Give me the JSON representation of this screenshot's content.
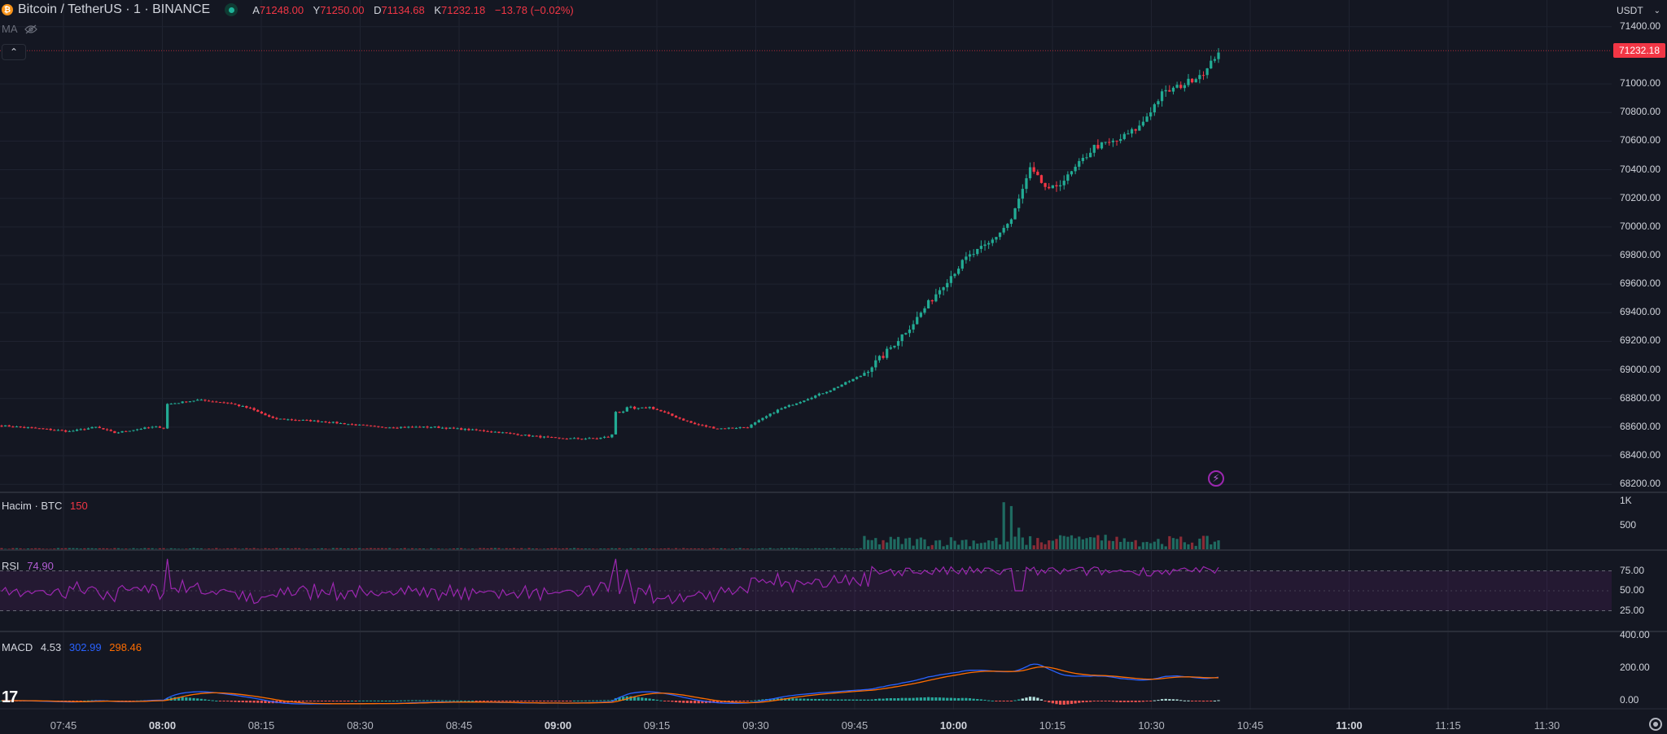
{
  "header": {
    "symbol": "Bitcoin / TetherUS · 1 · BINANCE",
    "coin_glyph": "₿",
    "ohlc": {
      "open_label": "A",
      "open": "71248.00",
      "high_label": "Y",
      "high": "71250.00",
      "low_label": "D",
      "low": "71134.68",
      "close_label": "K",
      "close": "71232.18",
      "change": "−13.78 (−0.02%)"
    }
  },
  "ma_label": "MA",
  "currency_button": "USDT",
  "current_price_tag": "71232.18",
  "colors": {
    "background": "#141722",
    "up": "#22ab94",
    "down": "#f23645",
    "volume_up": "#1f6b61",
    "volume_down": "#8a2b36",
    "rsi": "#9c27b0",
    "macd": "#2962ff",
    "signal": "#ff6d00",
    "grid": "#1f2330"
  },
  "price_axis": [
    "71400.00",
    "71000.00",
    "70800.00",
    "70600.00",
    "70400.00",
    "70200.00",
    "70000.00",
    "69800.00",
    "69600.00",
    "69400.00",
    "69200.00",
    "69000.00",
    "68800.00",
    "68600.00",
    "68400.00",
    "68200.00"
  ],
  "volume_pane": {
    "legend_name": "Hacim · BTC",
    "legend_value": "150",
    "axis": [
      "1K",
      "500"
    ]
  },
  "rsi_pane": {
    "legend_name": "RSI",
    "legend_value": "74.90",
    "axis": [
      "75.00",
      "50.00",
      "25.00"
    ]
  },
  "macd_pane": {
    "legend_name": "MACD",
    "v1": "4.53",
    "v2": "302.99",
    "v3": "298.46",
    "axis": [
      "400.00",
      "200.00",
      "0.00"
    ]
  },
  "time_axis": [
    {
      "t": "07:45",
      "bold": false
    },
    {
      "t": "08:00",
      "bold": true
    },
    {
      "t": "08:15",
      "bold": false
    },
    {
      "t": "08:30",
      "bold": false
    },
    {
      "t": "08:45",
      "bold": false
    },
    {
      "t": "09:00",
      "bold": true
    },
    {
      "t": "09:15",
      "bold": false
    },
    {
      "t": "09:30",
      "bold": false
    },
    {
      "t": "09:45",
      "bold": false
    },
    {
      "t": "10:00",
      "bold": true
    },
    {
      "t": "10:15",
      "bold": false
    },
    {
      "t": "10:30",
      "bold": false
    },
    {
      "t": "10:45",
      "bold": false
    },
    {
      "t": "11:00",
      "bold": true
    },
    {
      "t": "11:15",
      "bold": false
    },
    {
      "t": "11:30",
      "bold": false
    }
  ],
  "logo_text": "17",
  "chart_data": {
    "type": "candlestick",
    "interval": "1m",
    "start_time": "07:33",
    "close_path_anchors": [
      [
        0,
        68610
      ],
      [
        10,
        68590
      ],
      [
        18,
        68570
      ],
      [
        25,
        68600
      ],
      [
        30,
        68560
      ],
      [
        37,
        68590
      ],
      [
        40,
        68600
      ],
      [
        43,
        68600
      ],
      [
        44,
        68760
      ],
      [
        52,
        68790
      ],
      [
        60,
        68770
      ],
      [
        66,
        68730
      ],
      [
        72,
        68660
      ],
      [
        85,
        68640
      ],
      [
        100,
        68600
      ],
      [
        115,
        68600
      ],
      [
        125,
        68580
      ],
      [
        130,
        68570
      ],
      [
        140,
        68540
      ],
      [
        148,
        68520
      ],
      [
        158,
        68520
      ],
      [
        162,
        68540
      ],
      [
        163,
        68710
      ],
      [
        172,
        68740
      ],
      [
        178,
        68680
      ],
      [
        184,
        68620
      ],
      [
        190,
        68590
      ],
      [
        198,
        68600
      ],
      [
        206,
        68720
      ],
      [
        212,
        68780
      ],
      [
        220,
        68860
      ],
      [
        228,
        68960
      ],
      [
        234,
        69100
      ],
      [
        242,
        69330
      ],
      [
        250,
        69600
      ],
      [
        256,
        69780
      ],
      [
        262,
        69880
      ],
      [
        268,
        70050
      ],
      [
        273,
        70400
      ],
      [
        278,
        70250
      ],
      [
        283,
        70350
      ],
      [
        290,
        70560
      ],
      [
        296,
        70600
      ],
      [
        302,
        70700
      ],
      [
        308,
        70930
      ],
      [
        314,
        71000
      ],
      [
        320,
        71100
      ],
      [
        323,
        71232
      ]
    ],
    "volume_peak_btc": 1000,
    "rsi_levels": [
      75,
      50,
      25
    ],
    "rsi_last": 74.9,
    "macd": {
      "histogram": 4.53,
      "macd": 302.99,
      "signal": 298.46
    }
  }
}
